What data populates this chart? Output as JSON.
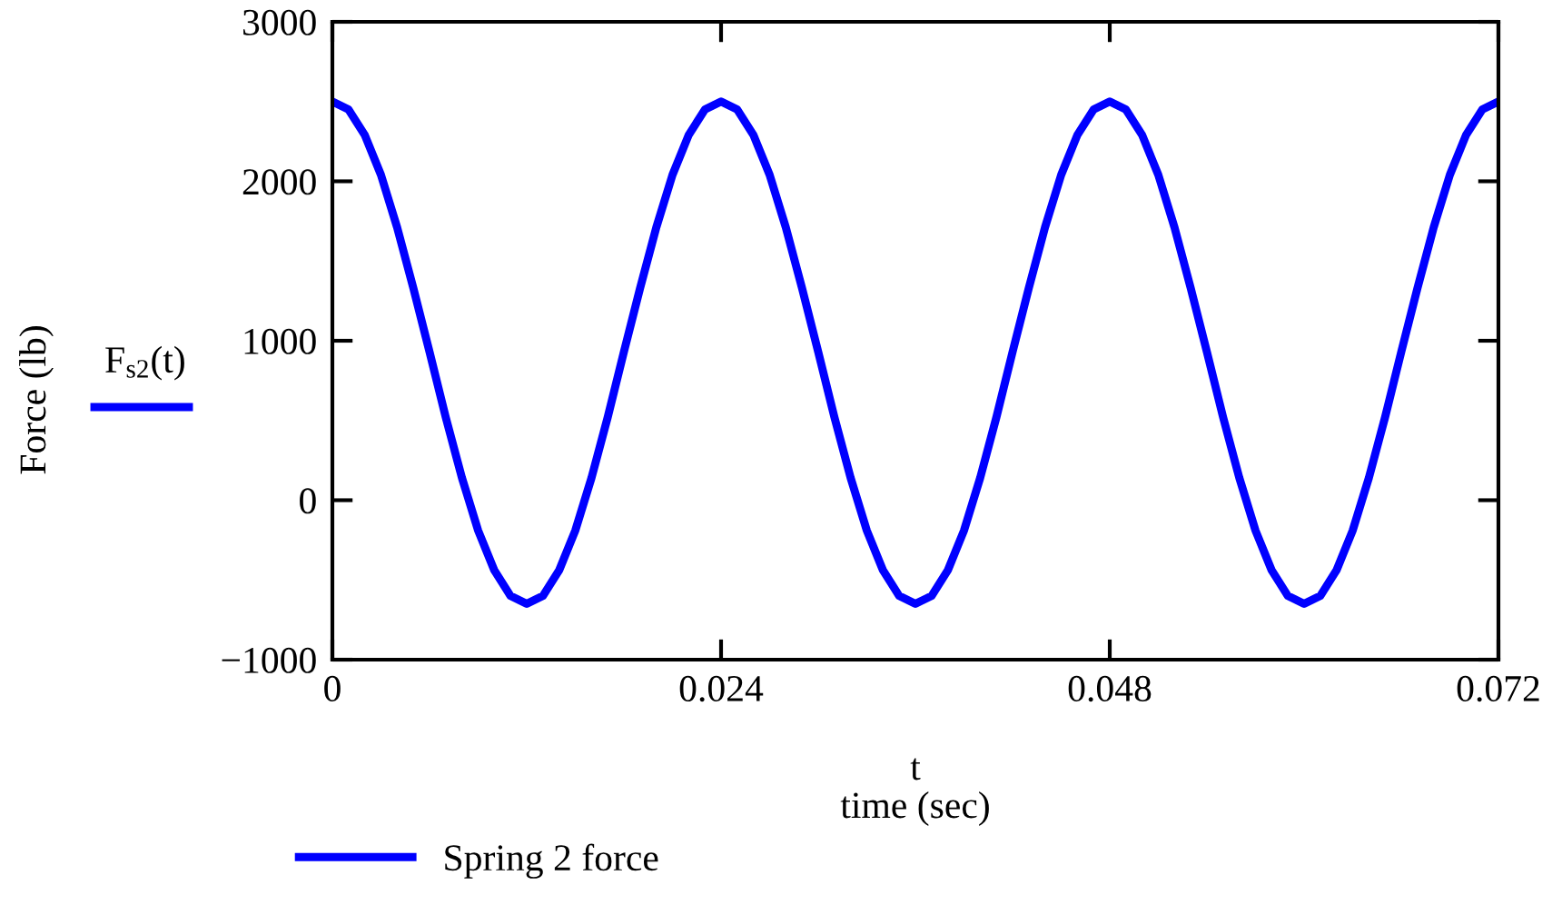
{
  "chart_data": {
    "type": "line",
    "xlabel": "time (sec)",
    "ylabel": "Force (lb)",
    "annotations": [
      "F$_{s2}$(t)",
      "t"
    ],
    "x": [
      0,
      0.001,
      0.002,
      0.003,
      0.004,
      0.005,
      0.006,
      0.007,
      0.008,
      0.009,
      0.01,
      0.011,
      0.012,
      0.013,
      0.014,
      0.015,
      0.016,
      0.017,
      0.018,
      0.019,
      0.02,
      0.021,
      0.022,
      0.023,
      0.024,
      0.025,
      0.026,
      0.027,
      0.028,
      0.029,
      0.03,
      0.031,
      0.032,
      0.033,
      0.034,
      0.035,
      0.036,
      0.037,
      0.038,
      0.039,
      0.04,
      0.041,
      0.042,
      0.043,
      0.044,
      0.045,
      0.046,
      0.047,
      0.048,
      0.049,
      0.05,
      0.051,
      0.052,
      0.053,
      0.054,
      0.055,
      0.056,
      0.057,
      0.058,
      0.059,
      0.06,
      0.061,
      0.062,
      0.063,
      0.064,
      0.065,
      0.066,
      0.067,
      0.068,
      0.069,
      0.07,
      0.071,
      0.072
    ],
    "series": [
      {
        "name": "Spring 2 force",
        "color": "#0000ff",
        "values": [
          2500,
          2450,
          2290,
          2040,
          1710,
          1330,
          930,
          520,
          140,
          -190,
          -440,
          -600,
          -650,
          -600,
          -440,
          -190,
          140,
          520,
          930,
          1330,
          1710,
          2040,
          2290,
          2450,
          2500,
          2450,
          2290,
          2040,
          1710,
          1330,
          930,
          520,
          140,
          -190,
          -440,
          -600,
          -650,
          -600,
          -440,
          -190,
          140,
          520,
          930,
          1330,
          1710,
          2040,
          2290,
          2450,
          2500,
          2450,
          2290,
          2040,
          1710,
          1330,
          930,
          520,
          140,
          -190,
          -440,
          -600,
          -650,
          -600,
          -440,
          -190,
          140,
          520,
          930,
          1330,
          1710,
          2040,
          2290,
          2450,
          2500
        ]
      }
    ],
    "xlim": [
      0,
      0.072
    ],
    "xticks": [
      0,
      0.024,
      0.048,
      0.072
    ],
    "ylim": [
      -1000,
      3000
    ],
    "yticks": [
      {
        "value": -1000,
        "label": "−1000"
      },
      0,
      1000,
      2000,
      3000
    ],
    "grid": false,
    "legend": "bottom left",
    "marker": "none",
    "line_style": "solid"
  }
}
